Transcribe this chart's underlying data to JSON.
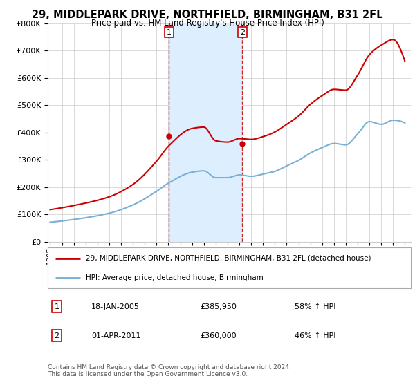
{
  "title": "29, MIDDLEPARK DRIVE, NORTHFIELD, BIRMINGHAM, B31 2FL",
  "subtitle": "Price paid vs. HM Land Registry's House Price Index (HPI)",
  "ylabel_ticks": [
    "£0",
    "£100K",
    "£200K",
    "£300K",
    "£400K",
    "£500K",
    "£600K",
    "£700K",
    "£800K"
  ],
  "ytick_values": [
    0,
    100000,
    200000,
    300000,
    400000,
    500000,
    600000,
    700000,
    800000
  ],
  "ylim": [
    0,
    800000
  ],
  "xlim_start": 1994.8,
  "xlim_end": 2025.5,
  "xtick_years": [
    1995,
    1996,
    1997,
    1998,
    1999,
    2000,
    2001,
    2002,
    2003,
    2004,
    2005,
    2006,
    2007,
    2008,
    2009,
    2010,
    2011,
    2012,
    2013,
    2014,
    2015,
    2016,
    2017,
    2018,
    2019,
    2020,
    2021,
    2022,
    2023,
    2024,
    2025
  ],
  "transaction1_x": 2005.05,
  "transaction1_y": 385950,
  "transaction2_x": 2011.25,
  "transaction2_y": 360000,
  "transaction1_date": "18-JAN-2005",
  "transaction1_price": "£385,950",
  "transaction1_hpi": "58% ↑ HPI",
  "transaction2_date": "01-APR-2011",
  "transaction2_price": "£360,000",
  "transaction2_hpi": "46% ↑ HPI",
  "vline_color": "#cc0000",
  "vband_color": "#ddeeff",
  "property_line_color": "#cc0000",
  "hpi_line_color": "#7ab0d4",
  "marker_color": "#cc0000",
  "legend_label1": "29, MIDDLEPARK DRIVE, NORTHFIELD, BIRMINGHAM, B31 2FL (detached house)",
  "legend_label2": "HPI: Average price, detached house, Birmingham",
  "footer": "Contains HM Land Registry data © Crown copyright and database right 2024.\nThis data is licensed under the Open Government Licence v3.0.",
  "background_color": "#ffffff",
  "grid_color": "#cccccc",
  "hpi_waypoints_x": [
    1995,
    1997,
    2000,
    2002,
    2004,
    2005,
    2007,
    2008,
    2009,
    2010,
    2011,
    2012,
    2013,
    2014,
    2015,
    2016,
    2017,
    2018,
    2019,
    2020,
    2021,
    2022,
    2023,
    2024,
    2025
  ],
  "hpi_waypoints_y": [
    72000,
    82000,
    105000,
    135000,
    185000,
    215000,
    255000,
    260000,
    235000,
    235000,
    245000,
    240000,
    248000,
    258000,
    278000,
    298000,
    325000,
    345000,
    360000,
    355000,
    395000,
    440000,
    430000,
    445000,
    435000
  ],
  "prop_waypoints_x": [
    1995,
    1997,
    2000,
    2002,
    2004,
    2005,
    2007,
    2008,
    2009,
    2010,
    2011,
    2012,
    2013,
    2014,
    2015,
    2016,
    2017,
    2018,
    2019,
    2020,
    2021,
    2022,
    2023,
    2024,
    2025
  ],
  "prop_waypoints_y": [
    118000,
    133000,
    165000,
    210000,
    295000,
    350000,
    415000,
    420000,
    370000,
    365000,
    378000,
    375000,
    385000,
    402000,
    430000,
    460000,
    503000,
    535000,
    558000,
    555000,
    610000,
    685000,
    720000,
    740000,
    660000
  ]
}
